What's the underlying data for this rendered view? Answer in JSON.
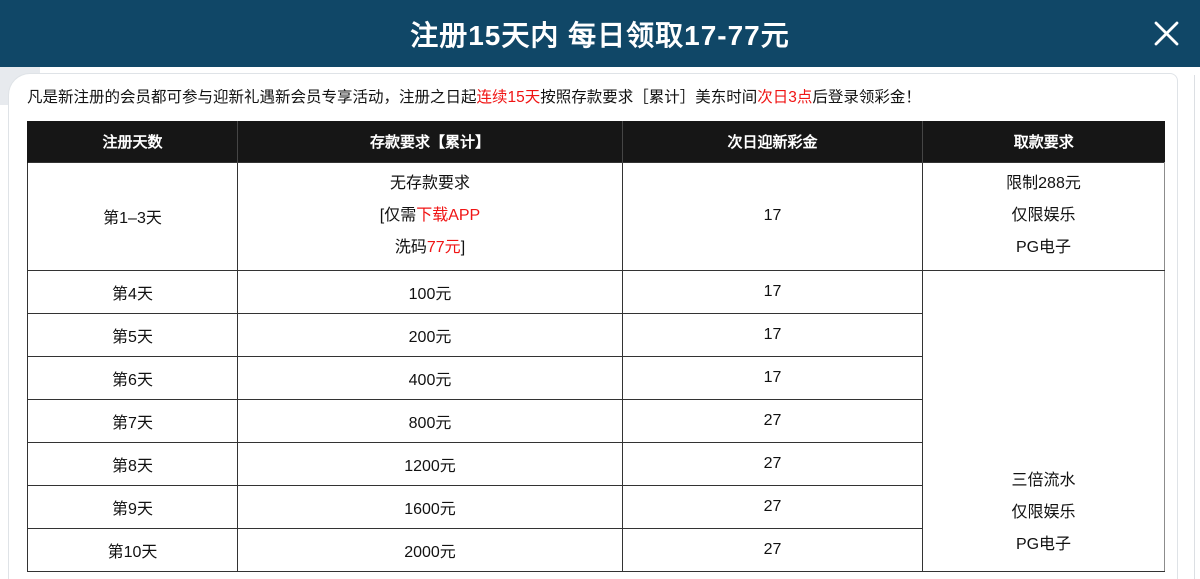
{
  "modal": {
    "title": "注册15天内 每日领取17-77元",
    "close_icon": "close-x"
  },
  "intro": {
    "segments": [
      {
        "t": "凡是新注册的会员都可参与迎新礼遇新会员专享活动，注册之日起"
      },
      {
        "t": "连续15天",
        "red": true
      },
      {
        "t": "按照存款要求［累计］美东时间"
      },
      {
        "t": "次日3点",
        "red": true
      },
      {
        "t": "后登录领彩金！"
      }
    ]
  },
  "table": {
    "headers": [
      "注册天数",
      "存款要求【累计】",
      "次日迎新彩金",
      "取款要求"
    ],
    "first_row": {
      "day": "第1–3天",
      "deposit_lines": [
        [
          {
            "t": "无存款要求"
          }
        ],
        [
          {
            "t": "[仅需"
          },
          {
            "t": "下载APP",
            "red": true
          }
        ],
        [
          {
            "t": "洗码"
          },
          {
            "t": "77元",
            "red": true
          },
          {
            "t": "]"
          }
        ]
      ],
      "bonus": "17",
      "withdraw_lines": [
        "限制288元",
        "仅限娱乐",
        "PG电子"
      ]
    },
    "daily_rows": [
      {
        "day": "第4天",
        "deposit": "100元",
        "bonus": "17"
      },
      {
        "day": "第5天",
        "deposit": "200元",
        "bonus": "17"
      },
      {
        "day": "第6天",
        "deposit": "400元",
        "bonus": "17"
      },
      {
        "day": "第7天",
        "deposit": "800元",
        "bonus": "27"
      },
      {
        "day": "第8天",
        "deposit": "1200元",
        "bonus": "27"
      },
      {
        "day": "第9天",
        "deposit": "1600元",
        "bonus": "27"
      },
      {
        "day": "第10天",
        "deposit": "2000元",
        "bonus": "27"
      }
    ],
    "merged_withdraw_lines": [
      "三倍流水",
      "仅限娱乐",
      "PG电子"
    ]
  },
  "colors": {
    "header_bg": "#104767",
    "table_header_bg": "#161616",
    "accent_red": "#f01414",
    "text": "#111111",
    "table_border": "#333333"
  }
}
